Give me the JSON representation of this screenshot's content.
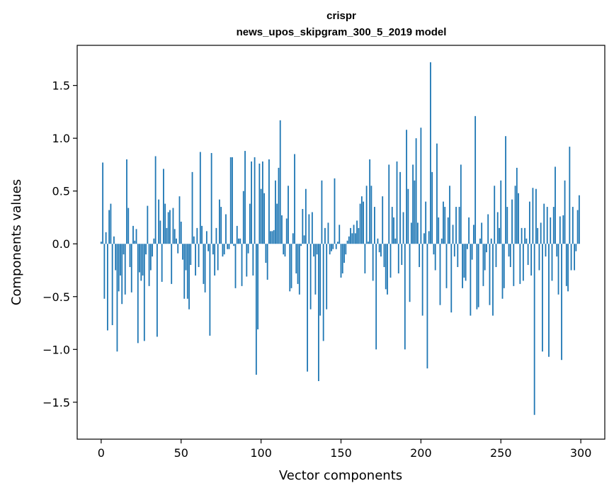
{
  "chart_data": {
    "type": "bar",
    "title": "crispr",
    "subtitle": "news_upos_skipgram_300_5_2019 model",
    "xlabel": "Vector components",
    "ylabel": "Components values",
    "xlim": [
      -15,
      315
    ],
    "ylim": [
      -1.85,
      1.88
    ],
    "xticks": [
      0,
      50,
      100,
      150,
      200,
      250,
      300
    ],
    "xtick_labels": [
      "0",
      "50",
      "100",
      "150",
      "200",
      "250",
      "300"
    ],
    "yticks": [
      1.5,
      1.0,
      0.5,
      0.0,
      -0.5,
      -1.0,
      -1.5
    ],
    "ytick_labels": [
      "1.5",
      "1.0",
      "0.5",
      "0.0",
      "−0.5",
      "−1.0",
      "−1.5"
    ],
    "color": "#1f77b4",
    "values": [
      0.02,
      0.77,
      -0.52,
      0.11,
      -0.82,
      0.32,
      0.38,
      -0.77,
      0.07,
      -0.25,
      -1.02,
      -0.45,
      -0.3,
      -0.57,
      -0.1,
      -0.48,
      0.8,
      0.34,
      -0.22,
      -0.46,
      0.17,
      0.03,
      0.14,
      -0.94,
      -0.27,
      -0.35,
      -0.3,
      -0.92,
      -0.1,
      0.36,
      -0.4,
      -0.25,
      -0.12,
      0.05,
      0.83,
      -0.88,
      0.42,
      0.22,
      -0.36,
      0.71,
      0.38,
      0.15,
      0.3,
      0.32,
      -0.38,
      0.34,
      0.14,
      0.05,
      -0.09,
      0.45,
      0.21,
      -0.15,
      -0.52,
      -0.25,
      -0.52,
      -0.62,
      -0.2,
      0.68,
      0.07,
      -0.3,
      0.15,
      -0.22,
      0.87,
      0.17,
      -0.38,
      -0.46,
      0.12,
      -0.07,
      -0.87,
      0.86,
      -0.1,
      -0.3,
      0.15,
      -0.25,
      0.42,
      0.35,
      -0.12,
      -0.1,
      0.28,
      -0.05,
      -0.05,
      0.82,
      0.82,
      -0.02,
      -0.42,
      0.17,
      0.05,
      0.05,
      -0.4,
      0.5,
      0.88,
      -0.31,
      -0.09,
      0.38,
      0.78,
      -0.3,
      0.82,
      -1.24,
      -0.81,
      0.76,
      0.52,
      0.78,
      0.48,
      -0.18,
      -0.34,
      0.8,
      0.12,
      0.12,
      0.13,
      0.6,
      0.38,
      0.72,
      1.17,
      0.27,
      -0.1,
      -0.12,
      0.24,
      0.55,
      -0.45,
      -0.42,
      0.1,
      0.85,
      -0.28,
      -0.38,
      -0.48,
      -0.02,
      0.33,
      0.08,
      0.52,
      -1.21,
      0.28,
      -0.62,
      0.3,
      -0.12,
      -0.48,
      -0.1,
      -1.3,
      -0.68,
      0.6,
      -0.92,
      0.15,
      -0.62,
      0.2,
      -0.1,
      -0.07,
      -0.05,
      0.62,
      -0.05,
      0.02,
      0.18,
      -0.32,
      -0.28,
      -0.18,
      -0.1,
      0.03,
      0.07,
      0.15,
      0.1,
      0.18,
      0.1,
      0.22,
      0.15,
      0.38,
      0.45,
      0.4,
      -0.28,
      0.55,
      0.02,
      0.8,
      0.55,
      -0.35,
      0.35,
      -1.0,
      0.05,
      -0.08,
      -0.12,
      0.45,
      -0.22,
      -0.43,
      -0.48,
      0.75,
      -0.32,
      0.35,
      0.25,
      0.05,
      0.78,
      -0.28,
      0.68,
      -0.2,
      0.3,
      -1.0,
      1.08,
      0.52,
      -0.55,
      0.2,
      0.75,
      0.6,
      1.0,
      0.2,
      -0.22,
      1.1,
      -0.68,
      0.1,
      0.4,
      -1.18,
      0.12,
      1.72,
      0.68,
      -0.1,
      -0.25,
      0.95,
      0.25,
      -0.58,
      0.05,
      0.4,
      0.35,
      -0.42,
      0.25,
      0.55,
      -0.65,
      0.18,
      -0.12,
      0.35,
      -0.22,
      0.35,
      0.75,
      -0.42,
      -0.32,
      -0.35,
      -0.05,
      0.25,
      -0.68,
      -0.15,
      0.18,
      1.21,
      -0.62,
      -0.6,
      0.05,
      0.2,
      -0.4,
      -0.25,
      -0.08,
      0.28,
      -0.58,
      0.05,
      -0.68,
      0.55,
      -0.22,
      0.3,
      0.15,
      0.6,
      -0.52,
      -0.42,
      1.02,
      0.35,
      -0.12,
      -0.22,
      0.42,
      -0.4,
      0.55,
      0.72,
      0.48,
      -0.38,
      0.15,
      -0.35,
      0.15,
      0.05,
      -0.2,
      0.4,
      -0.3,
      0.53,
      -1.62,
      0.52,
      0.15,
      -0.25,
      0.2,
      -1.02,
      0.38,
      -0.12,
      0.35,
      -1.07,
      0.25,
      -0.35,
      0.35,
      0.73,
      -0.12,
      -0.48,
      0.26,
      -1.1,
      0.27,
      0.6,
      -0.4,
      -0.45,
      0.92,
      -0.25,
      0.35,
      -0.25,
      -0.07,
      0.32,
      0.46
    ]
  }
}
